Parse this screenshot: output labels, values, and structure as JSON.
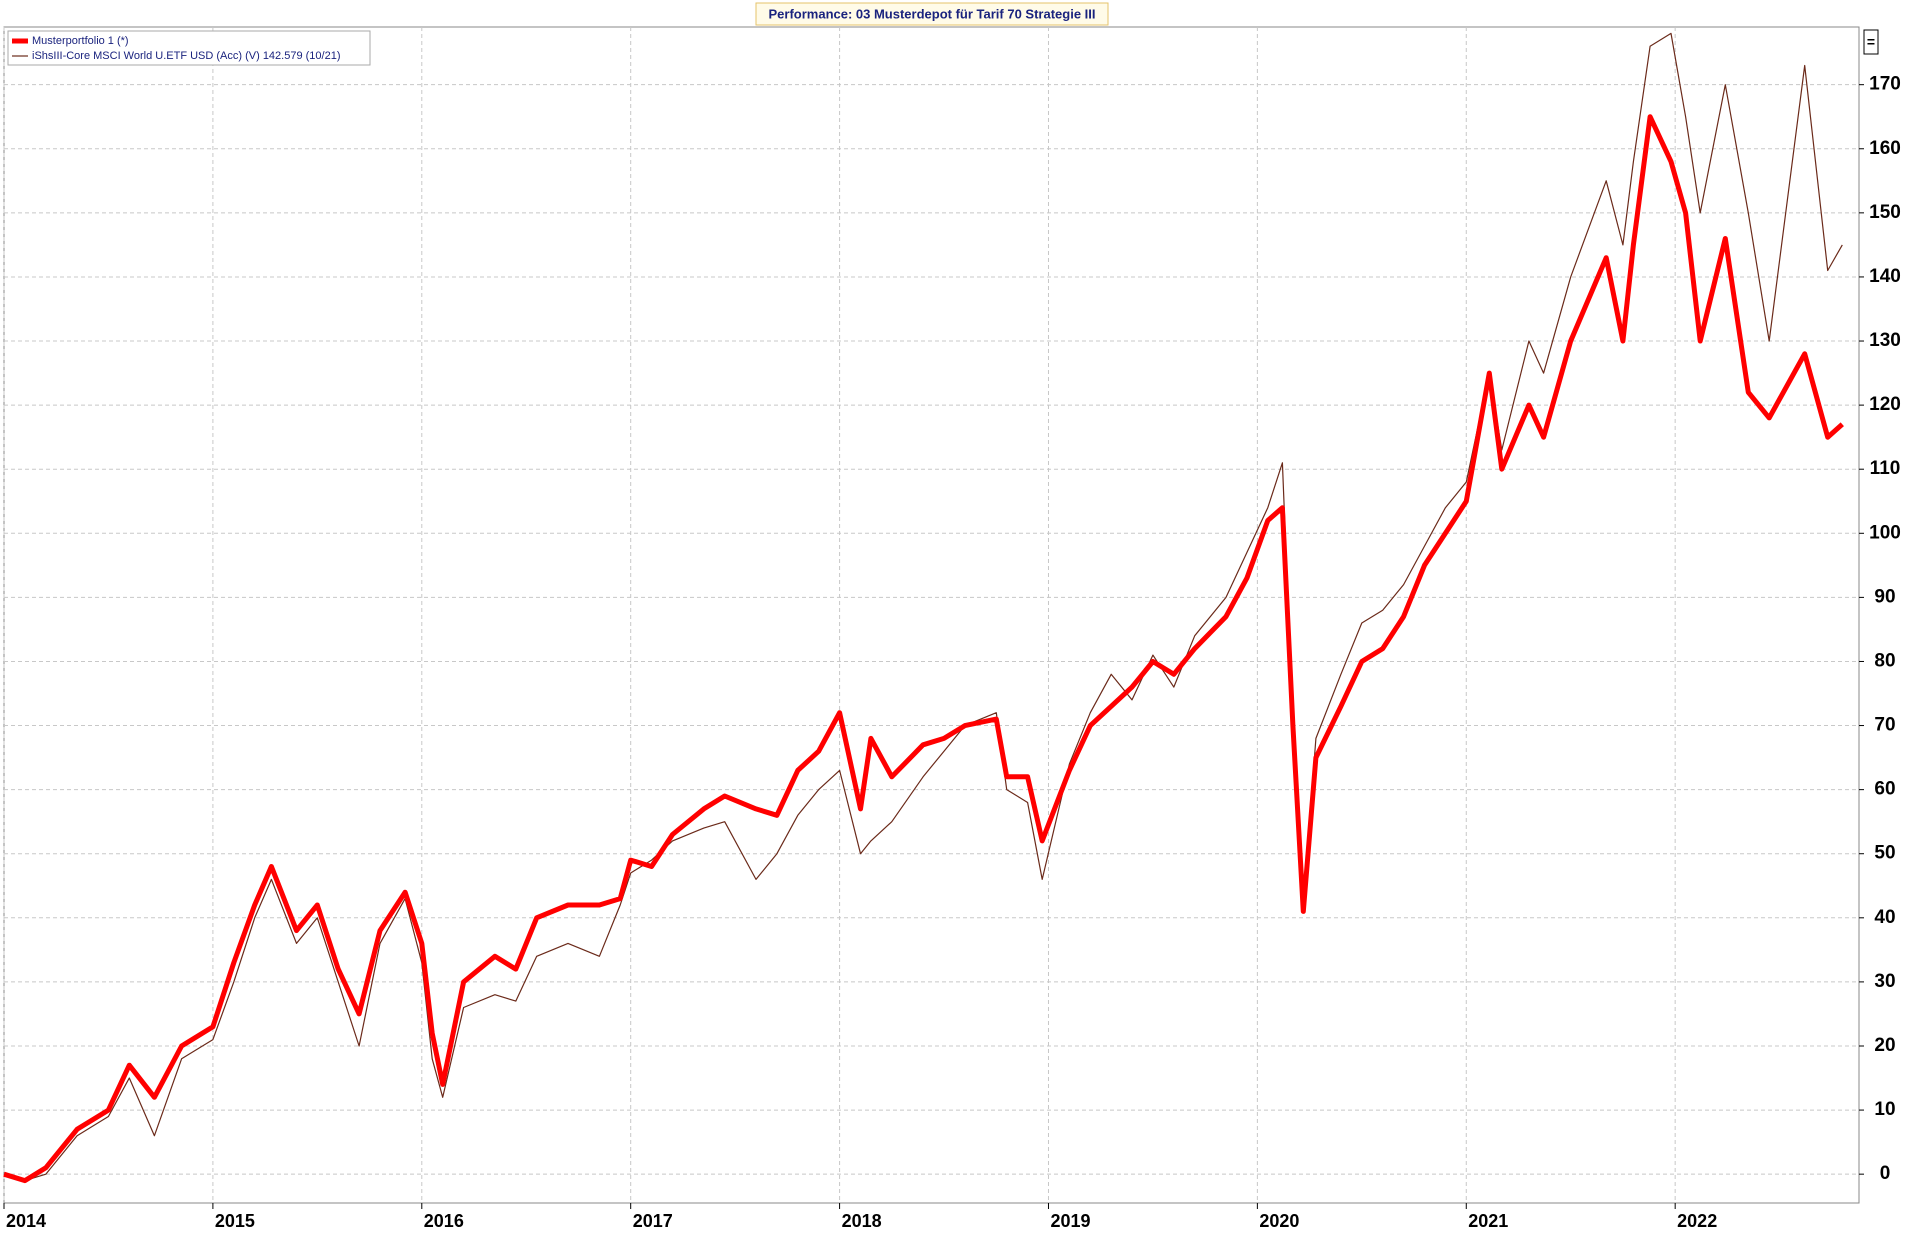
{
  "chart_data": {
    "type": "line",
    "title": "Performance: 03 Musterdepot für Tarif 70 Strategie III",
    "x": [
      2014.0,
      2014.1,
      2014.2,
      2014.35,
      2014.5,
      2014.6,
      2014.72,
      2014.85,
      2015.0,
      2015.1,
      2015.2,
      2015.28,
      2015.4,
      2015.5,
      2015.6,
      2015.7,
      2015.8,
      2015.92,
      2016.0,
      2016.05,
      2016.1,
      2016.2,
      2016.35,
      2016.45,
      2016.55,
      2016.7,
      2016.85,
      2016.95,
      2017.0,
      2017.1,
      2017.2,
      2017.35,
      2017.45,
      2017.6,
      2017.7,
      2017.8,
      2017.9,
      2018.0,
      2018.1,
      2018.15,
      2018.25,
      2018.4,
      2018.5,
      2018.6,
      2018.75,
      2018.8,
      2018.9,
      2018.97,
      2019.1,
      2019.2,
      2019.3,
      2019.4,
      2019.5,
      2019.6,
      2019.7,
      2019.85,
      2019.95,
      2020.05,
      2020.12,
      2020.17,
      2020.22,
      2020.28,
      2020.4,
      2020.5,
      2020.6,
      2020.7,
      2020.8,
      2020.9,
      2021.0,
      2021.11,
      2021.17,
      2021.3,
      2021.37,
      2021.5,
      2021.67,
      2021.75,
      2021.8,
      2021.88,
      2021.98,
      2022.05,
      2022.12,
      2022.24,
      2022.35,
      2022.45,
      2022.62,
      2022.73,
      2022.8
    ],
    "series": [
      {
        "name": "Musterportfolio 1 (*)",
        "color": "#ff0000",
        "values": [
          0,
          -1,
          1,
          7,
          10,
          17,
          12,
          20,
          23,
          33,
          42,
          48,
          38,
          42,
          32,
          25,
          38,
          44,
          36,
          22,
          14,
          30,
          34,
          32,
          40,
          42,
          42,
          43,
          49,
          48,
          53,
          57,
          59,
          57,
          56,
          63,
          66,
          72,
          57,
          68,
          62,
          67,
          68,
          70,
          71,
          62,
          62,
          52,
          63,
          70,
          73,
          76,
          80,
          78,
          82,
          87,
          93,
          102,
          104,
          70,
          41,
          65,
          73,
          80,
          82,
          87,
          95,
          100,
          105,
          125,
          110,
          120,
          115,
          130,
          143,
          130,
          145,
          165,
          158,
          150,
          130,
          146,
          122,
          118,
          128,
          115,
          117
        ]
      },
      {
        "name": "iShsIII-Core MSCI World U.ETF USD (Acc) (V) 142.579 (10/21)",
        "color": "#6b2a1a",
        "values": [
          0,
          -1,
          0,
          6,
          9,
          15,
          6,
          18,
          21,
          30,
          40,
          46,
          36,
          40,
          30,
          20,
          36,
          43,
          33,
          18,
          12,
          26,
          28,
          27,
          34,
          36,
          34,
          42,
          47,
          49,
          52,
          54,
          55,
          46,
          50,
          56,
          60,
          63,
          50,
          52,
          55,
          62,
          66,
          70,
          72,
          60,
          58,
          46,
          64,
          72,
          78,
          74,
          81,
          76,
          84,
          90,
          97,
          104,
          111,
          70,
          42,
          68,
          78,
          86,
          88,
          92,
          98,
          104,
          108,
          125,
          113,
          130,
          125,
          140,
          155,
          145,
          158,
          176,
          178,
          165,
          150,
          170,
          150,
          130,
          173,
          141,
          145
        ]
      }
    ],
    "xlim": [
      2014,
      2022.88
    ],
    "xticks": [
      2014,
      2015,
      2016,
      2017,
      2018,
      2019,
      2020,
      2021,
      2022
    ],
    "ylim": [
      -4.5,
      179
    ],
    "yticks": [
      0,
      10,
      20,
      30,
      40,
      50,
      60,
      70,
      80,
      90,
      100,
      110,
      120,
      130,
      140,
      150,
      160,
      170
    ],
    "grid": true,
    "legend": "top-left"
  }
}
